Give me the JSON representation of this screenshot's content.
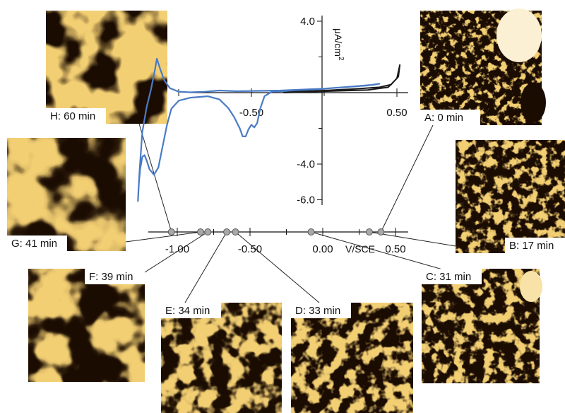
{
  "chart_data": {
    "type": "line",
    "top_plot": {
      "xlim": [
        -1.4,
        0.5
      ],
      "ylim": [
        -6.5,
        4.0
      ],
      "x_ticks": [
        {
          "value": -0.5,
          "label": "-0.50"
        },
        {
          "value": 0.5,
          "label": "0.50"
        }
      ],
      "y_ticks": [
        {
          "value": 4.0,
          "label": "4.0"
        },
        {
          "value": -4.0,
          "label": "-4.0"
        },
        {
          "value": -6.0,
          "label": "-6.0"
        }
      ],
      "y_label": "μA/cm",
      "y_label_sup": "2",
      "series": [
        {
          "color": "#4a7bc4",
          "points": [
            [
              -1.28,
              -6.1
            ],
            [
              -1.275,
              -5.2
            ],
            [
              -1.265,
              -4.3
            ],
            [
              -1.25,
              -3.6
            ],
            [
              -1.235,
              -3.5
            ],
            [
              -1.22,
              -3.8
            ],
            [
              -1.2,
              -4.3
            ],
            [
              -1.17,
              -4.6
            ],
            [
              -1.14,
              -4.2
            ],
            [
              -1.11,
              -3.0
            ],
            [
              -1.08,
              -1.8
            ],
            [
              -1.05,
              -0.9
            ],
            [
              -1.0,
              -0.45
            ],
            [
              -0.92,
              -0.28
            ],
            [
              -0.8,
              -0.2
            ],
            [
              -0.72,
              -0.38
            ],
            [
              -0.66,
              -0.85
            ],
            [
              -0.62,
              -1.35
            ],
            [
              -0.58,
              -2.0
            ],
            [
              -0.56,
              -2.45
            ],
            [
              -0.54,
              -2.45
            ],
            [
              -0.52,
              -2.05
            ],
            [
              -0.5,
              -1.8
            ],
            [
              -0.48,
              -1.95
            ],
            [
              -0.46,
              -1.7
            ],
            [
              -0.44,
              -0.9
            ],
            [
              -0.41,
              -0.2
            ],
            [
              -0.36,
              0.05
            ],
            [
              -0.1,
              0.15
            ],
            [
              0.2,
              0.35
            ],
            [
              0.35,
              0.45
            ],
            [
              0.38,
              0.5
            ],
            [
              0.3,
              0.4
            ],
            [
              0.0,
              0.22
            ],
            [
              -0.3,
              0.12
            ],
            [
              -0.6,
              0.08
            ],
            [
              -0.72,
              0.12
            ],
            [
              -0.82,
              0.05
            ],
            [
              -0.92,
              0.02
            ],
            [
              -1.0,
              0.05
            ],
            [
              -1.06,
              0.25
            ],
            [
              -1.1,
              0.7
            ],
            [
              -1.13,
              1.4
            ],
            [
              -1.15,
              1.9
            ],
            [
              -1.165,
              1.2
            ],
            [
              -1.19,
              0.2
            ],
            [
              -1.22,
              -0.8
            ],
            [
              -1.25,
              -2.2
            ],
            [
              -1.27,
              -4.5
            ],
            [
              -1.28,
              -6.1
            ]
          ]
        },
        {
          "color": "#1a1a1a",
          "points": [
            [
              -0.28,
              0.0
            ],
            [
              -0.1,
              0.05
            ],
            [
              0.1,
              0.1
            ],
            [
              0.3,
              0.15
            ],
            [
              0.44,
              0.3
            ],
            [
              0.5,
              0.8
            ],
            [
              0.52,
              1.55
            ],
            [
              0.51,
              0.9
            ],
            [
              0.46,
              0.45
            ],
            [
              0.38,
              0.3
            ],
            [
              0.2,
              0.2
            ],
            [
              0.0,
              0.12
            ],
            [
              -0.2,
              0.05
            ],
            [
              -0.28,
              0.0
            ]
          ]
        }
      ]
    },
    "bottom_axis": {
      "xlim": [
        -1.4,
        0.6
      ],
      "x_ticks": [
        {
          "value": -1.0,
          "label": "-1.00"
        },
        {
          "value": -0.5,
          "label": "-0.50"
        },
        {
          "value": 0.0,
          "label": "0.00"
        },
        {
          "value": 0.5,
          "label": "0.50"
        }
      ],
      "x_label": "V/SCE",
      "markers": [
        {
          "value": -1.04,
          "label": "H: 60 min"
        },
        {
          "value": -0.84,
          "label": "G: 41 min"
        },
        {
          "value": -0.79,
          "label": "F: 39 min"
        },
        {
          "value": -0.66,
          "label": "E: 34 min"
        },
        {
          "value": -0.6,
          "label": "D: 33 min"
        },
        {
          "value": -0.08,
          "label": "C: 31 min"
        },
        {
          "value": 0.32,
          "label": "B: 17 min"
        },
        {
          "value": 0.4,
          "label": "A: 0 min"
        }
      ]
    },
    "panels": [
      {
        "id": "H",
        "label": "H: 60 min",
        "marker_index": 0
      },
      {
        "id": "G",
        "label": "G: 41 min",
        "marker_index": 1
      },
      {
        "id": "F",
        "label": "F: 39 min",
        "marker_index": 2
      },
      {
        "id": "E",
        "label": "E: 34 min",
        "marker_index": 3
      },
      {
        "id": "D",
        "label": "D: 33 min",
        "marker_index": 4
      },
      {
        "id": "C",
        "label": "C: 31 min",
        "marker_index": 5
      },
      {
        "id": "B",
        "label": "B: 17 min",
        "marker_index": 6
      },
      {
        "id": "A",
        "label": "A: 0 min",
        "marker_index": 7
      }
    ],
    "colors": {
      "blue_curve": "#4a7bc4",
      "black_curve": "#1a1a1a",
      "image_dark": "#1b0c02",
      "image_light": "#f3cf73"
    }
  }
}
